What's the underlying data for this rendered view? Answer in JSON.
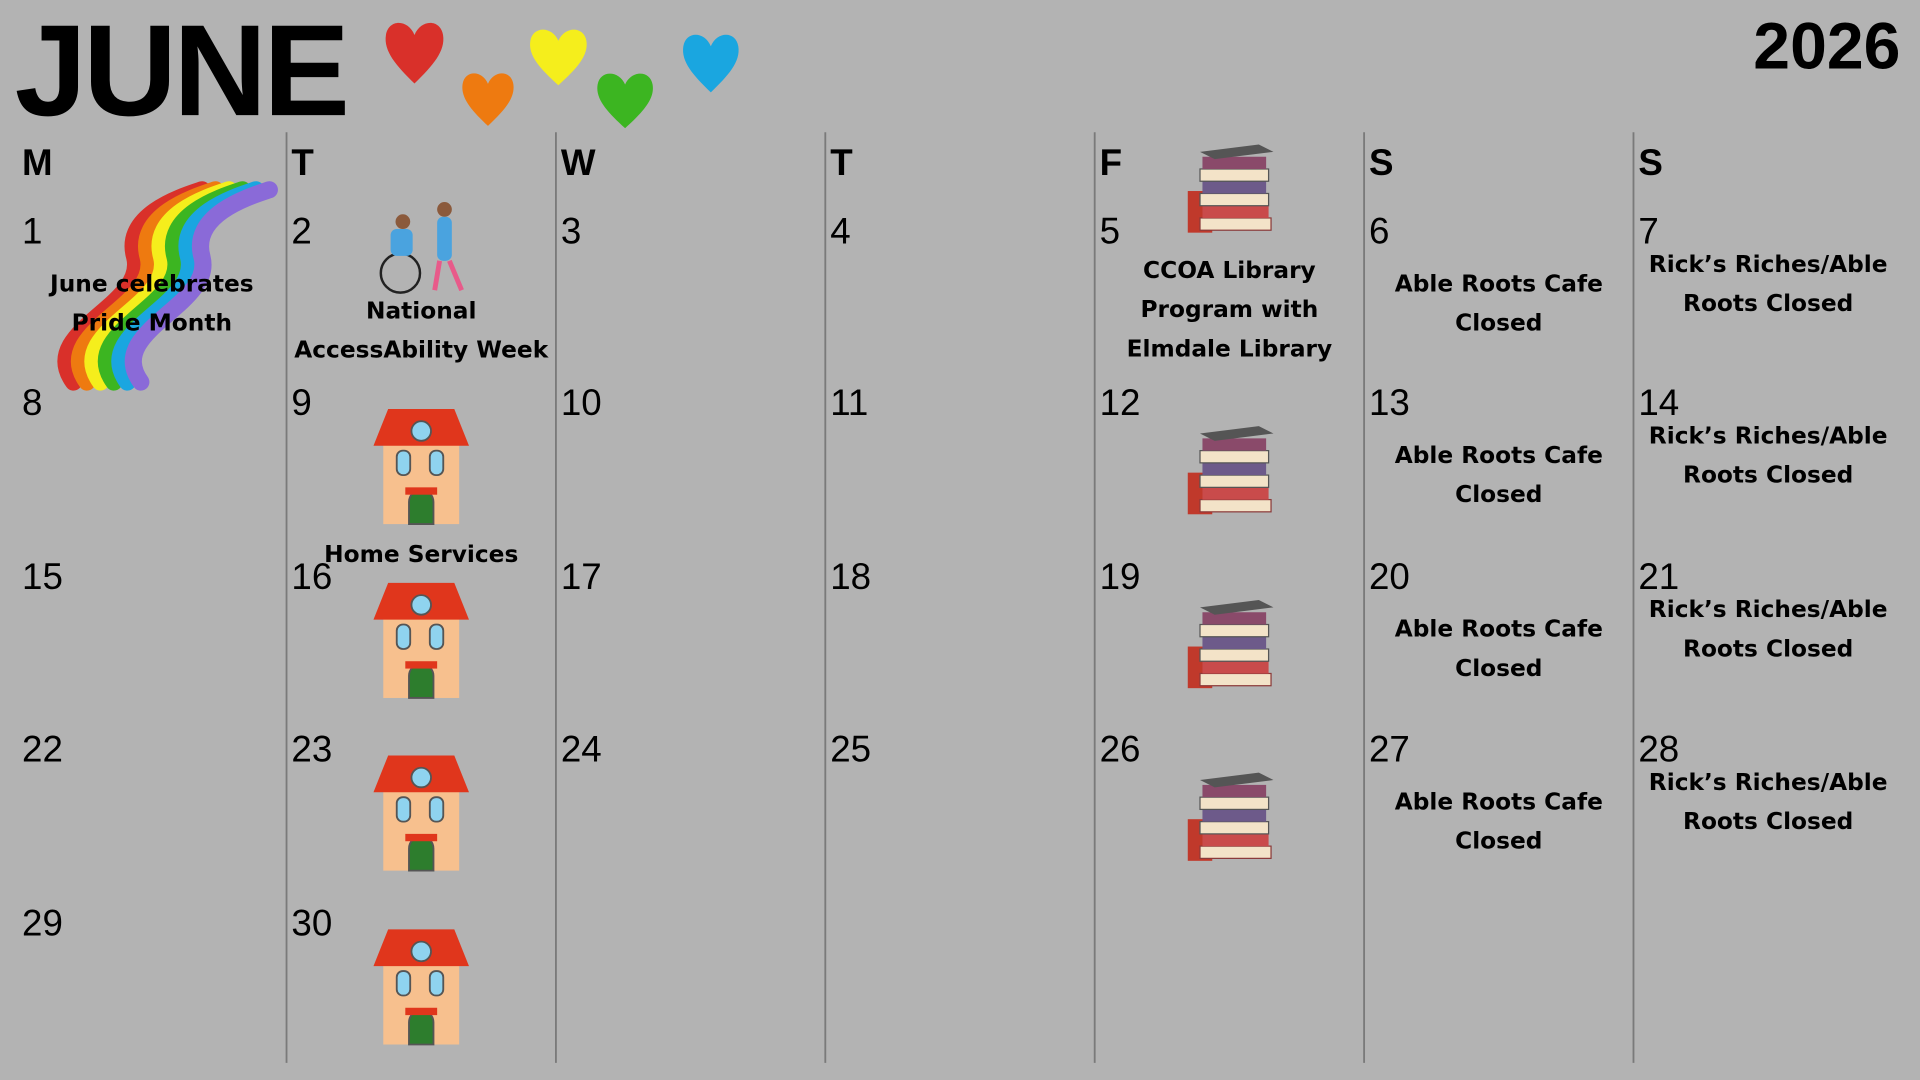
{
  "header": {
    "title": "JUNE",
    "year": "2026"
  },
  "weekdays": [
    "M",
    "T",
    "W",
    "T",
    "F",
    "S",
    "S"
  ],
  "days": [
    {
      "day": 1,
      "event": "June celebrates Pride Month"
    },
    {
      "day": 2,
      "event": "National AccessAbility Week"
    },
    {
      "day": 3
    },
    {
      "day": 4
    },
    {
      "day": 5,
      "event": "CCOA Library Program with Elmdale Library"
    },
    {
      "day": 6,
      "event": "Able Roots Cafe Closed"
    },
    {
      "day": 7,
      "event": "Rick’s Riches/Able Roots Closed"
    },
    {
      "day": 8
    },
    {
      "day": 9,
      "event": "Home Services"
    },
    {
      "day": 10
    },
    {
      "day": 11
    },
    {
      "day": 12
    },
    {
      "day": 13,
      "event": "Able Roots Cafe Closed"
    },
    {
      "day": 14,
      "event": "Rick’s Riches/Able Roots Closed"
    },
    {
      "day": 15
    },
    {
      "day": 16
    },
    {
      "day": 17
    },
    {
      "day": 18
    },
    {
      "day": 19
    },
    {
      "day": 20,
      "event": "Able Roots Cafe Closed"
    },
    {
      "day": 21,
      "event": "Rick’s Riches/Able Roots Closed"
    },
    {
      "day": 22
    },
    {
      "day": 23
    },
    {
      "day": 24
    },
    {
      "day": 25
    },
    {
      "day": 26
    },
    {
      "day": 27,
      "event": "Able Roots Cafe Closed"
    },
    {
      "day": 28,
      "event": "Rick’s Riches/Able Roots Closed"
    },
    {
      "day": 29
    },
    {
      "day": 30
    }
  ]
}
